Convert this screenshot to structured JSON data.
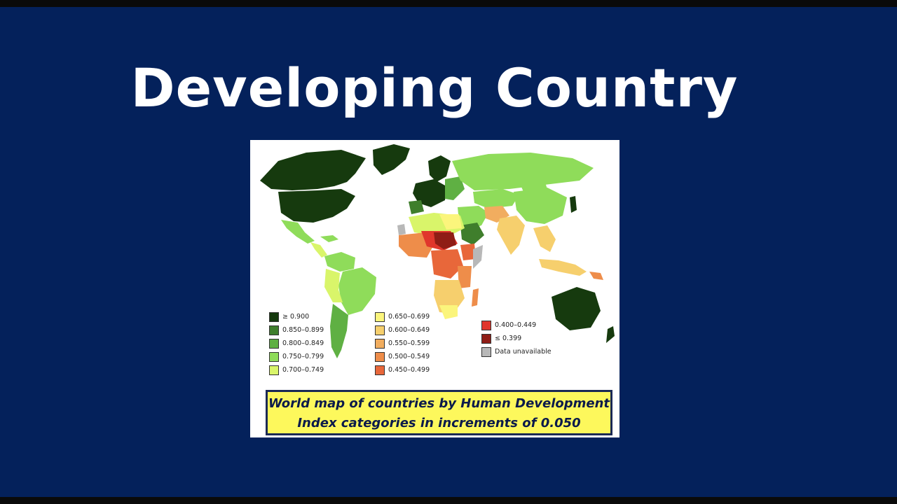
{
  "title": "Developing Country",
  "caption": {
    "line1": "World map of countries by Human Development",
    "line2": "Index categories in increments of 0.050"
  },
  "legend": {
    "col1": [
      {
        "label": "≥ 0.900",
        "color": "#163a0e"
      },
      {
        "label": "0.850–0.899",
        "color": "#3f7e2c"
      },
      {
        "label": "0.800–0.849",
        "color": "#5fb043"
      },
      {
        "label": "0.750–0.799",
        "color": "#8fdc5a"
      },
      {
        "label": "0.700–0.749",
        "color": "#d9f56a"
      }
    ],
    "col2": [
      {
        "label": "0.650–0.699",
        "color": "#fbf57c"
      },
      {
        "label": "0.600–0.649",
        "color": "#f6cf6d"
      },
      {
        "label": "0.550–0.599",
        "color": "#f1ad5f"
      },
      {
        "label": "0.500–0.549",
        "color": "#ee8d4a"
      },
      {
        "label": "0.450–0.499",
        "color": "#e8673a"
      }
    ],
    "col3": [
      {
        "label": "0.400–0.449",
        "color": "#e0362c"
      },
      {
        "label": "≤ 0.399",
        "color": "#8f1d16"
      },
      {
        "label": "Data unavailable",
        "color": "#b8b8b8"
      }
    ]
  }
}
